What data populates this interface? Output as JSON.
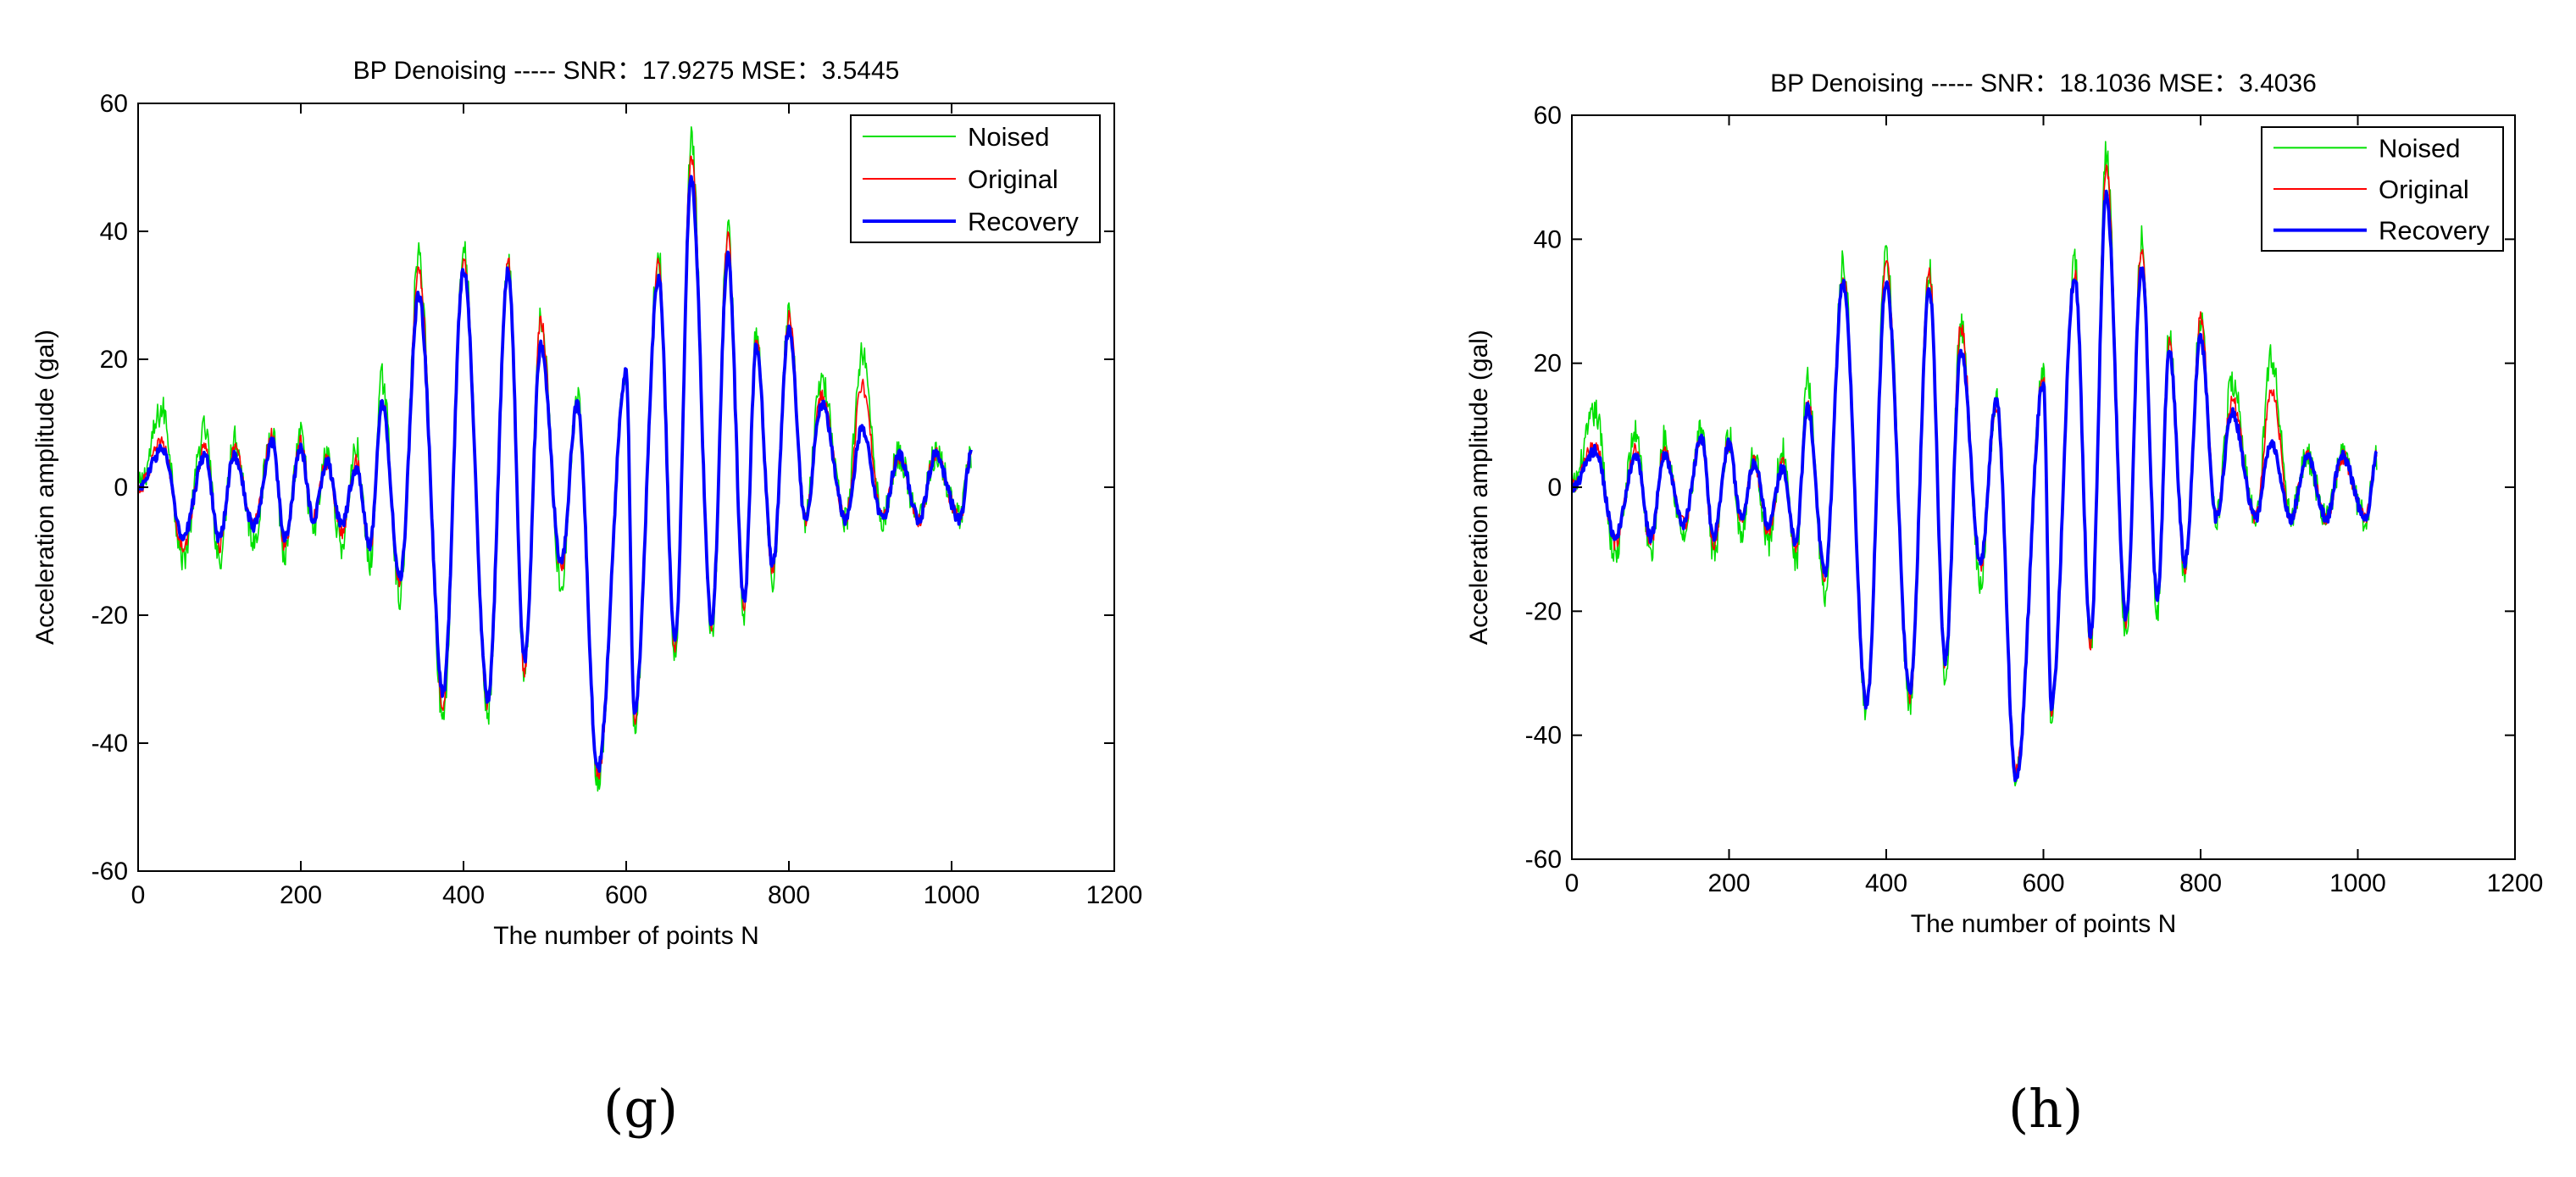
{
  "colors": {
    "noised": "#00e000",
    "original": "#ff0000",
    "recovery": "#0000ff",
    "axis": "#000000"
  },
  "chart_data": [
    {
      "type": "line",
      "panel_label": "(g)",
      "title": "BP Denoising  -----  SNR：17.9275    MSE：3.5445",
      "xlabel": "The number of points N",
      "ylabel": "Acceleration amplitude (gal)",
      "xlim": [
        0,
        1200
      ],
      "ylim": [
        -60,
        60
      ],
      "xticks": [
        0,
        200,
        400,
        600,
        800,
        1000,
        1200
      ],
      "yticks": [
        -60,
        -40,
        -20,
        0,
        20,
        40,
        60
      ],
      "grid": false,
      "legend_position": "top-right",
      "series": [
        {
          "name": "Noised",
          "color": "#00e000",
          "x_range": [
            1,
            1024
          ],
          "peaks": [
            12,
            9,
            8,
            9,
            8,
            5,
            6,
            17,
            36,
            37,
            35,
            26,
            14,
            18,
            36,
            54,
            40,
            24,
            27,
            17,
            21
          ],
          "troughs": [
            -11,
            -11,
            -8,
            -11,
            -7,
            -9,
            -12,
            -17,
            -36,
            -35,
            -30,
            -15,
            -46,
            -37,
            -26,
            -24,
            -20,
            -14
          ]
        },
        {
          "name": "Original",
          "color": "#ff0000",
          "x_range": [
            1,
            1024
          ],
          "peaks": [
            7,
            6,
            6,
            8,
            7,
            4,
            4,
            14,
            34,
            36,
            35,
            26,
            13,
            18,
            35,
            52,
            39,
            23,
            27,
            14,
            16
          ],
          "troughs": [
            -9,
            -9,
            -6,
            -9,
            -5,
            -7,
            -10,
            -15,
            -34,
            -34,
            -29,
            -13,
            -45,
            -36,
            -25,
            -22,
            -18,
            -13
          ]
        },
        {
          "name": "Recovery",
          "color": "#0000ff",
          "x_range": [
            1,
            1024
          ],
          "peaks": [
            6,
            5,
            5,
            7,
            6,
            4,
            3,
            13,
            30,
            34,
            34,
            22,
            13,
            18,
            33,
            48,
            36,
            22,
            25,
            13,
            9
          ],
          "troughs": [
            -8,
            -8,
            -6,
            -8,
            -5,
            -6,
            -9,
            -14,
            -32,
            -33,
            -27,
            -12,
            -44,
            -35,
            -24,
            -21,
            -18,
            -12
          ]
        }
      ]
    },
    {
      "type": "line",
      "panel_label": "(h)",
      "title": "BP Denoising  -----  SNR：18.1036    MSE：3.4036",
      "xlabel": "The number of points N",
      "ylabel": "Acceleration amplitude (gal)",
      "xlim": [
        0,
        1200
      ],
      "ylim": [
        -60,
        60
      ],
      "xticks": [
        0,
        200,
        400,
        600,
        800,
        1000,
        1200
      ],
      "yticks": [
        -60,
        -40,
        -20,
        0,
        20,
        40,
        60
      ],
      "grid": false,
      "legend_position": "top-right",
      "series": [
        {
          "name": "Noised",
          "color": "#00e000",
          "x_range": [
            1,
            1024
          ],
          "peaks": [
            12,
            9,
            8,
            9,
            8,
            5,
            6,
            17,
            36,
            37,
            35,
            26,
            14,
            18,
            36,
            54,
            40,
            24,
            27,
            17,
            21
          ],
          "troughs": [
            -11,
            -11,
            -8,
            -11,
            -7,
            -9,
            -12,
            -17,
            -36,
            -35,
            -30,
            -15,
            -47,
            -37,
            -26,
            -24,
            -20,
            -14
          ]
        },
        {
          "name": "Original",
          "color": "#ff0000",
          "x_range": [
            1,
            1024
          ],
          "peaks": [
            7,
            6,
            6,
            8,
            7,
            4,
            4,
            14,
            34,
            36,
            35,
            26,
            13,
            18,
            35,
            52,
            39,
            23,
            27,
            14,
            16
          ],
          "troughs": [
            -9,
            -9,
            -6,
            -9,
            -5,
            -7,
            -10,
            -15,
            -34,
            -34,
            -29,
            -13,
            -46,
            -36,
            -25,
            -22,
            -18,
            -13
          ]
        },
        {
          "name": "Recovery",
          "color": "#0000ff",
          "x_range": [
            1,
            1024
          ],
          "peaks": [
            6,
            5,
            5,
            8,
            7,
            4,
            3,
            13,
            33,
            33,
            32,
            22,
            14,
            17,
            34,
            47,
            36,
            22,
            24,
            12,
            7
          ],
          "troughs": [
            -8,
            -8,
            -6,
            -8,
            -5,
            -6,
            -9,
            -14,
            -35,
            -33,
            -28,
            -12,
            -47,
            -35,
            -24,
            -21,
            -18,
            -12
          ]
        }
      ]
    }
  ]
}
